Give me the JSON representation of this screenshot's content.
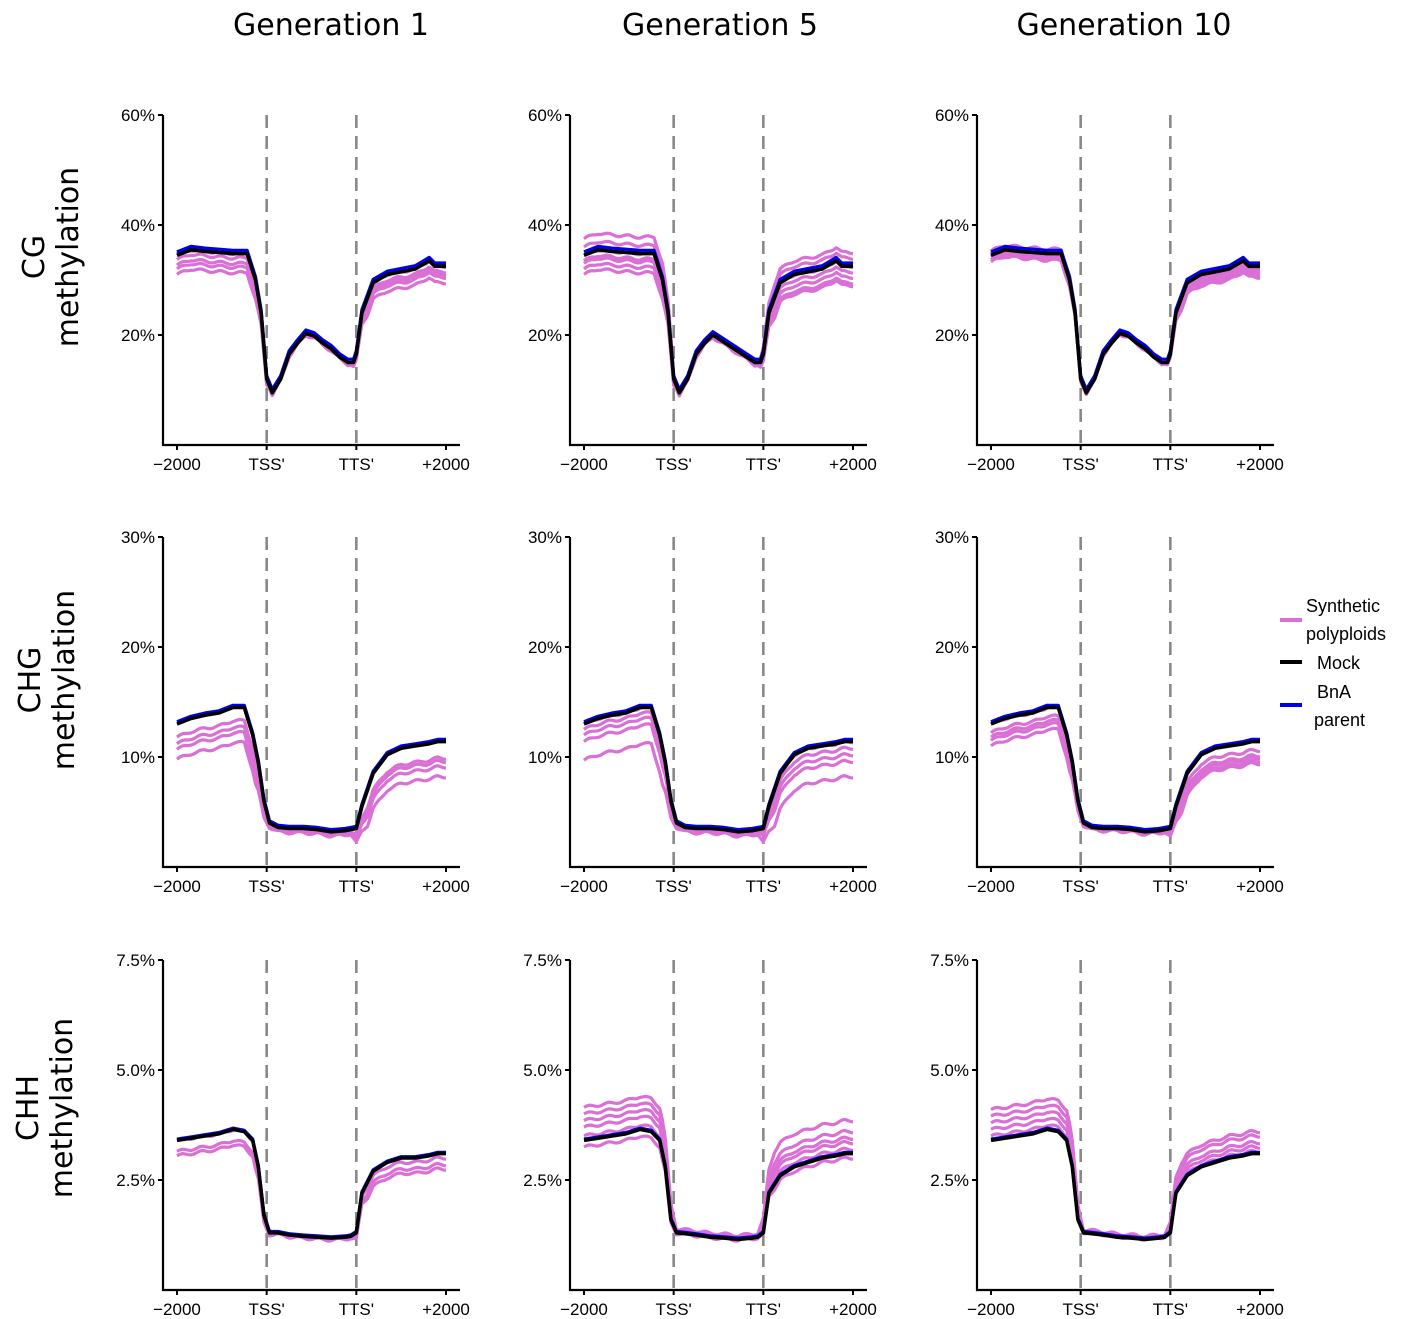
{
  "column_titles": [
    "Generation 1",
    "Generation 5",
    "Generation 10"
  ],
  "row_titles": [
    {
      "context": "CG",
      "line2": "methylation"
    },
    {
      "context": "CHG",
      "line2": "methylation"
    },
    {
      "context": "CHH",
      "line2": "methylation"
    }
  ],
  "legend": {
    "items": [
      {
        "lines": [
          "Synthetic",
          "polyploids"
        ],
        "color": "#DA70D6"
      },
      {
        "lines": [
          "Mock"
        ],
        "color": "#000000"
      },
      {
        "lines": [
          "BnA",
          "parent"
        ],
        "color": "#0000EE"
      }
    ]
  },
  "colors": {
    "synthetic": "#DA70D6",
    "mock": "#000000",
    "parent": "#0000EE",
    "boundary": "#888888"
  },
  "chart_data": [
    {
      "type": "line",
      "row": "CG methylation",
      "column": "Generation 1",
      "x_tick_labels": [
        "-2000",
        "TSS'",
        "TTS'",
        "+2000"
      ],
      "x_tick_positions": [
        0,
        32,
        64,
        96
      ],
      "boundary_x": [
        32,
        64
      ],
      "y_ticks": [
        20,
        40,
        60
      ],
      "y_tick_labels": [
        "20%",
        "40%",
        "60%"
      ],
      "ylim": [
        0,
        60
      ],
      "mock": {
        "x": [
          0,
          5,
          10,
          15,
          20,
          25,
          28,
          30,
          32,
          34,
          37,
          40,
          43,
          46,
          49,
          52,
          55,
          58,
          61,
          63,
          64,
          66,
          70,
          75,
          80,
          85,
          90,
          92,
          96
        ],
        "y": [
          34.5,
          35.5,
          35.2,
          35,
          34.8,
          34.8,
          30,
          24,
          12,
          9.5,
          12,
          16.5,
          18.5,
          20.3,
          19.8,
          18.5,
          17.5,
          16,
          15,
          15,
          16.5,
          24,
          29.5,
          31,
          31.5,
          32,
          33.5,
          32.5,
          32.5
        ]
      },
      "parent_offset": 0.6,
      "synthetic_offsets": [
        0,
        -0.8,
        -1.8,
        -2.5,
        -3.5,
        0.3
      ],
      "synthetic_end_drops": [
        0,
        -1,
        -2,
        -3,
        -1.5,
        0.2
      ]
    },
    {
      "type": "line",
      "row": "CG methylation",
      "column": "Generation 5",
      "x_tick_labels": [
        "-2000",
        "TSS'",
        "TTS'",
        "+2000"
      ],
      "x_tick_positions": [
        0,
        32,
        64,
        96
      ],
      "boundary_x": [
        32,
        64
      ],
      "y_ticks": [
        20,
        40,
        60
      ],
      "y_tick_labels": [
        "20%",
        "40%",
        "60%"
      ],
      "ylim": [
        0,
        60
      ],
      "mock": {
        "x": [
          0,
          5,
          10,
          15,
          20,
          25,
          28,
          30,
          32,
          34,
          37,
          40,
          43,
          46,
          49,
          52,
          55,
          58,
          61,
          63,
          64,
          66,
          70,
          75,
          80,
          85,
          90,
          92,
          96
        ],
        "y": [
          34.5,
          35.5,
          35.2,
          35,
          34.8,
          34.8,
          30,
          24,
          12,
          9.5,
          12,
          16.5,
          18.5,
          20,
          19,
          18,
          17,
          16,
          15,
          15,
          16.5,
          24,
          29.5,
          31,
          31.5,
          32,
          33.5,
          32.5,
          32.5
        ]
      },
      "parent_offset": 0.6,
      "synthetic_offsets": [
        3,
        1.5,
        0,
        -1.5,
        -2.5,
        -3.5,
        -1
      ],
      "synthetic_end_drops": [
        2.5,
        1.5,
        0,
        -2,
        -3,
        -3.5,
        -1
      ]
    },
    {
      "type": "line",
      "row": "CG methylation",
      "column": "Generation 10",
      "x_tick_labels": [
        "-2000",
        "TSS'",
        "TTS'",
        "+2000"
      ],
      "x_tick_positions": [
        0,
        32,
        64,
        96
      ],
      "boundary_x": [
        32,
        64
      ],
      "y_ticks": [
        20,
        40,
        60
      ],
      "y_tick_labels": [
        "20%",
        "40%",
        "60%"
      ],
      "ylim": [
        0,
        60
      ],
      "mock": {
        "x": [
          0,
          5,
          10,
          15,
          20,
          25,
          28,
          30,
          32,
          34,
          37,
          40,
          43,
          46,
          49,
          52,
          55,
          58,
          61,
          63,
          64,
          66,
          70,
          75,
          80,
          85,
          90,
          92,
          96
        ],
        "y": [
          34.5,
          35.5,
          35.2,
          35,
          34.8,
          34.8,
          30,
          24,
          12,
          9.5,
          12,
          16.5,
          18.5,
          20.3,
          19.8,
          18.5,
          17.5,
          16,
          15,
          15,
          16.5,
          24,
          29.5,
          31,
          31.5,
          32,
          33.5,
          32.5,
          32.5
        ]
      },
      "parent_offset": 0.6,
      "synthetic_offsets": [
        0.8,
        0.3,
        -0.3,
        -0.8,
        -1.2
      ],
      "synthetic_end_drops": [
        0,
        -1,
        -2,
        -0.5,
        -1.5
      ]
    },
    {
      "type": "line",
      "row": "CHG methylation",
      "column": "Generation 1",
      "x_tick_labels": [
        "-2000",
        "TSS'",
        "TTS'",
        "+2000"
      ],
      "x_tick_positions": [
        0,
        32,
        64,
        96
      ],
      "boundary_x": [
        32,
        64
      ],
      "y_ticks": [
        10,
        20,
        30
      ],
      "y_tick_labels": [
        "10%",
        "20%",
        "30%"
      ],
      "ylim": [
        0,
        30
      ],
      "mock": {
        "x": [
          0,
          5,
          10,
          15,
          20,
          24,
          27,
          29,
          31,
          33,
          36,
          40,
          45,
          50,
          55,
          60,
          62,
          64,
          66,
          70,
          75,
          80,
          85,
          90,
          93,
          96
        ],
        "y": [
          13,
          13.5,
          13.8,
          14,
          14.5,
          14.5,
          12,
          9.5,
          6,
          4,
          3.6,
          3.5,
          3.5,
          3.4,
          3.2,
          3.3,
          3.4,
          3.5,
          5.5,
          8.5,
          10.2,
          10.8,
          11,
          11.2,
          11.4,
          11.4
        ]
      },
      "parent_offset": 0.2,
      "synthetic_offsets": [
        -1.8,
        -2.3,
        -3.2,
        -1.2
      ],
      "synthetic_end_drops": [
        -1.8,
        -2.3,
        -3.2,
        -1.5
      ]
    },
    {
      "type": "line",
      "row": "CHG methylation",
      "column": "Generation 5",
      "x_tick_labels": [
        "-2000",
        "TSS'",
        "TTS'",
        "+2000"
      ],
      "x_tick_positions": [
        0,
        32,
        64,
        96
      ],
      "boundary_x": [
        32,
        64
      ],
      "y_ticks": [
        10,
        20,
        30
      ],
      "y_tick_labels": [
        "10%",
        "20%",
        "30%"
      ],
      "ylim": [
        0,
        30
      ],
      "mock": {
        "x": [
          0,
          5,
          10,
          15,
          20,
          24,
          27,
          29,
          31,
          33,
          36,
          40,
          45,
          50,
          55,
          60,
          62,
          64,
          66,
          70,
          75,
          80,
          85,
          90,
          93,
          96
        ],
        "y": [
          13,
          13.5,
          13.8,
          14,
          14.5,
          14.5,
          12,
          9.5,
          6,
          4,
          3.6,
          3.5,
          3.5,
          3.4,
          3.2,
          3.3,
          3.4,
          3.5,
          5.5,
          8.5,
          10.2,
          10.8,
          11,
          11.2,
          11.4,
          11.4
        ]
      },
      "parent_offset": 0.2,
      "synthetic_offsets": [
        0,
        -1,
        -1.6,
        -3.3,
        -0.5
      ],
      "synthetic_end_drops": [
        0,
        -1.2,
        -1.8,
        -3.2,
        -0.6
      ]
    },
    {
      "type": "line",
      "row": "CHG methylation",
      "column": "Generation 10",
      "x_tick_labels": [
        "-2000",
        "TSS'",
        "TTS'",
        "+2000"
      ],
      "x_tick_positions": [
        0,
        32,
        64,
        96
      ],
      "boundary_x": [
        32,
        64
      ],
      "y_ticks": [
        10,
        20,
        30
      ],
      "y_tick_labels": [
        "10%",
        "20%",
        "30%"
      ],
      "ylim": [
        0,
        30
      ],
      "mock": {
        "x": [
          0,
          5,
          10,
          15,
          20,
          24,
          27,
          29,
          31,
          33,
          36,
          40,
          45,
          50,
          55,
          60,
          62,
          64,
          66,
          70,
          75,
          80,
          85,
          90,
          93,
          96
        ],
        "y": [
          13,
          13.5,
          13.8,
          14,
          14.5,
          14.5,
          12,
          9.5,
          6,
          4,
          3.6,
          3.5,
          3.5,
          3.4,
          3.2,
          3.3,
          3.4,
          3.5,
          5.5,
          8.5,
          10.2,
          10.8,
          11,
          11.2,
          11.4,
          11.4
        ]
      },
      "parent_offset": 0.2,
      "synthetic_offsets": [
        0,
        -0.8,
        -1.5,
        -2,
        -1.2
      ],
      "synthetic_end_drops": [
        -1.3,
        -1.8,
        -2,
        -1.5,
        -0.8
      ]
    },
    {
      "type": "line",
      "row": "CHH methylation",
      "column": "Generation 1",
      "x_tick_labels": [
        "-2000",
        "TSS'",
        "TTS'",
        "+2000"
      ],
      "x_tick_positions": [
        0,
        32,
        64,
        96
      ],
      "boundary_x": [
        32,
        64
      ],
      "y_ticks": [
        2.5,
        5.0,
        7.5
      ],
      "y_tick_labels": [
        "2.5%",
        "5.0%",
        "7.5%"
      ],
      "ylim": [
        0,
        7.5
      ],
      "mock": {
        "x": [
          0,
          5,
          10,
          15,
          20,
          24,
          27,
          29,
          31,
          33,
          36,
          40,
          45,
          50,
          55,
          60,
          62,
          64,
          66,
          70,
          75,
          80,
          85,
          90,
          93,
          96
        ],
        "y": [
          3.4,
          3.45,
          3.5,
          3.55,
          3.65,
          3.6,
          3.4,
          2.8,
          1.7,
          1.3,
          1.3,
          1.25,
          1.22,
          1.2,
          1.18,
          1.2,
          1.22,
          1.3,
          2.2,
          2.7,
          2.9,
          3.0,
          3.0,
          3.05,
          3.1,
          3.1
        ]
      },
      "parent_offset": 0.03,
      "synthetic_offsets": [
        0,
        -0.25,
        -0.35
      ],
      "synthetic_end_drops": [
        -0.1,
        -0.25,
        -0.35
      ]
    },
    {
      "type": "line",
      "row": "CHH methylation",
      "column": "Generation 5",
      "x_tick_labels": [
        "-2000",
        "TSS'",
        "TTS'",
        "+2000"
      ],
      "x_tick_positions": [
        0,
        32,
        64,
        96
      ],
      "boundary_x": [
        32,
        64
      ],
      "y_ticks": [
        2.5,
        5.0,
        7.5
      ],
      "y_tick_labels": [
        "2.5%",
        "5.0%",
        "7.5%"
      ],
      "ylim": [
        0,
        7.5
      ],
      "mock": {
        "x": [
          0,
          5,
          10,
          15,
          20,
          24,
          27,
          29,
          31,
          33,
          36,
          40,
          45,
          50,
          55,
          60,
          62,
          64,
          66,
          70,
          75,
          80,
          85,
          90,
          93,
          96
        ],
        "y": [
          3.4,
          3.45,
          3.5,
          3.55,
          3.65,
          3.6,
          3.4,
          2.8,
          1.6,
          1.3,
          1.28,
          1.25,
          1.2,
          1.18,
          1.15,
          1.18,
          1.2,
          1.3,
          2.2,
          2.6,
          2.8,
          2.9,
          3.0,
          3.05,
          3.1,
          3.1
        ]
      },
      "parent_offset": 0.03,
      "synthetic_offsets": [
        0.75,
        0.6,
        0.45,
        0.3,
        0.1,
        -0.15
      ],
      "synthetic_end_drops": [
        0.75,
        0.5,
        0.35,
        0.25,
        0.1,
        -0.1
      ]
    },
    {
      "type": "line",
      "row": "CHH methylation",
      "column": "Generation 10",
      "x_tick_labels": [
        "-2000",
        "TSS'",
        "TTS'",
        "+2000"
      ],
      "x_tick_positions": [
        0,
        32,
        64,
        96
      ],
      "boundary_x": [
        32,
        64
      ],
      "y_ticks": [
        2.5,
        5.0,
        7.5
      ],
      "y_tick_labels": [
        "2.5%",
        "5.0%",
        "7.5%"
      ],
      "ylim": [
        0,
        7.5
      ],
      "mock": {
        "x": [
          0,
          5,
          10,
          15,
          20,
          24,
          27,
          29,
          31,
          33,
          36,
          40,
          45,
          50,
          55,
          60,
          62,
          64,
          66,
          70,
          75,
          80,
          85,
          90,
          93,
          96
        ],
        "y": [
          3.4,
          3.45,
          3.5,
          3.55,
          3.65,
          3.6,
          3.4,
          2.8,
          1.6,
          1.3,
          1.28,
          1.25,
          1.2,
          1.18,
          1.15,
          1.18,
          1.2,
          1.3,
          2.2,
          2.6,
          2.8,
          2.9,
          3.0,
          3.05,
          3.1,
          3.1
        ]
      },
      "parent_offset": 0.03,
      "synthetic_offsets": [
        0.7,
        0.55,
        0.4,
        0.25,
        0.1
      ],
      "synthetic_end_drops": [
        0.5,
        0.4,
        0.25,
        0.15,
        0.05
      ]
    }
  ]
}
